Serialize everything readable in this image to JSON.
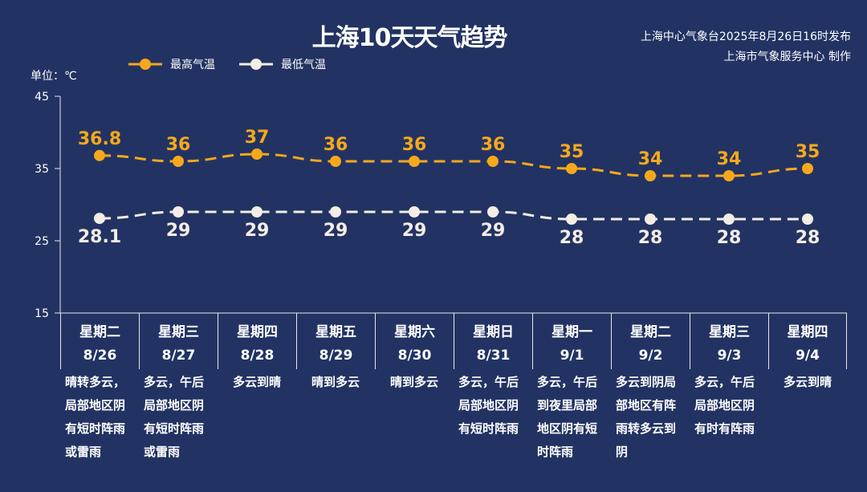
{
  "title": "上海10天天气趋势",
  "publisher": {
    "line1": "上海中心气象台2025年8月26日16时发布",
    "line2": "上海市气象服务中心 制作"
  },
  "unit_label": "单位：℃",
  "colors": {
    "background": "#223363",
    "high": "#f5a81c",
    "low": "#f3ede6"
  },
  "chart_data": {
    "type": "line",
    "title": "上海10天天气趋势",
    "ylabel": "单位：℃",
    "ylim": [
      15,
      45
    ],
    "yticks": [
      "15",
      "25",
      "35",
      "45"
    ],
    "categories": [
      "8/26",
      "8/27",
      "8/28",
      "8/29",
      "8/30",
      "8/31",
      "9/1",
      "9/2",
      "9/3",
      "9/4"
    ],
    "legend_position": "top-left",
    "grid": false,
    "series": [
      {
        "name": "最高气温",
        "values": [
          36.8,
          36,
          37,
          36,
          36,
          36,
          35,
          34,
          34,
          35
        ],
        "labels": [
          "36.8",
          "36",
          "37",
          "36",
          "36",
          "36",
          "35",
          "34",
          "34",
          "35"
        ],
        "style": "dashed smooth"
      },
      {
        "name": "最低气温",
        "values": [
          28.1,
          29,
          29,
          29,
          29,
          29,
          28,
          28,
          28,
          28
        ],
        "labels": [
          "28.1",
          "29",
          "29",
          "29",
          "29",
          "29",
          "28",
          "28",
          "28",
          "28"
        ],
        "style": "dashed smooth"
      }
    ]
  },
  "days": [
    {
      "weekday": "星期二",
      "date": "8/26",
      "weather": [
        "晴转多云，",
        "局部地区阴",
        "有短时阵雨",
        "或雷雨"
      ]
    },
    {
      "weekday": "星期三",
      "date": "8/27",
      "weather": [
        "多云，午后",
        "局部地区阴",
        "有短时阵雨",
        "或雷雨"
      ]
    },
    {
      "weekday": "星期四",
      "date": "8/28",
      "weather": [
        "多云到晴"
      ]
    },
    {
      "weekday": "星期五",
      "date": "8/29",
      "weather": [
        "晴到多云"
      ]
    },
    {
      "weekday": "星期六",
      "date": "8/30",
      "weather": [
        "晴到多云"
      ]
    },
    {
      "weekday": "星期日",
      "date": "8/31",
      "weather": [
        "多云，午后",
        "局部地区阴",
        "有短时阵雨"
      ]
    },
    {
      "weekday": "星期一",
      "date": "9/1",
      "weather": [
        "多云，午后",
        "到夜里局部",
        "地区阴有短",
        "时阵雨"
      ]
    },
    {
      "weekday": "星期二",
      "date": "9/2",
      "weather": [
        "多云到阴局",
        "部地区有阵",
        "雨转多云到",
        "阴"
      ]
    },
    {
      "weekday": "星期三",
      "date": "9/3",
      "weather": [
        "多云，午后",
        "局部地区阴",
        "有时有阵雨"
      ]
    },
    {
      "weekday": "星期四",
      "date": "9/4",
      "weather": [
        "多云到晴"
      ]
    }
  ]
}
